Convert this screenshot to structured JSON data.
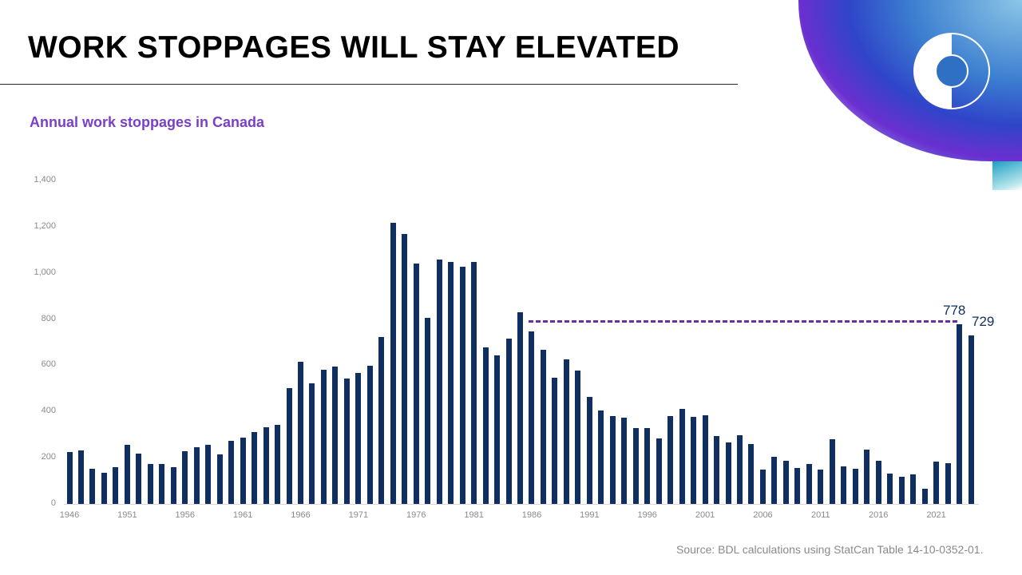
{
  "slide": {
    "title": "WORK STOPPAGES WILL STAY ELEVATED",
    "subtitle": "Annual work stoppages in Canada",
    "source": "Source: BDL calculations using StatCan Table 14-10-0352-01.",
    "logo": "bdc-ring-logo-icon",
    "colors": {
      "bar": "#0e2f5f",
      "accent": "#7a3fc8",
      "dash": "#6b2fa0"
    }
  },
  "chart_data": {
    "type": "bar",
    "title": "Annual work stoppages in Canada",
    "xlabel": "",
    "ylabel": "",
    "ylim": [
      0,
      1400
    ],
    "yticks": [
      "0",
      "200",
      "400",
      "600",
      "800",
      "1,000",
      "1,200",
      "1,400"
    ],
    "xtick_labels": [
      "1946",
      "1951",
      "1956",
      "1961",
      "1966",
      "1971",
      "1976",
      "1981",
      "1986",
      "1991",
      "1996",
      "2001",
      "2006",
      "2011",
      "2016",
      "2021"
    ],
    "grid": false,
    "legend": "none",
    "categories": [
      "1946",
      "1947",
      "1948",
      "1949",
      "1950",
      "1951",
      "1952",
      "1953",
      "1954",
      "1955",
      "1956",
      "1957",
      "1958",
      "1959",
      "1960",
      "1961",
      "1962",
      "1963",
      "1964",
      "1965",
      "1966",
      "1967",
      "1968",
      "1969",
      "1970",
      "1971",
      "1972",
      "1973",
      "1974",
      "1975",
      "1976",
      "1977",
      "1978",
      "1979",
      "1980",
      "1981",
      "1982",
      "1983",
      "1984",
      "1985",
      "1986",
      "1987",
      "1988",
      "1989",
      "1990",
      "1991",
      "1992",
      "1993",
      "1994",
      "1995",
      "1996",
      "1997",
      "1998",
      "1999",
      "2000",
      "2001",
      "2002",
      "2003",
      "2004",
      "2005",
      "2006",
      "2007",
      "2008",
      "2009",
      "2010",
      "2011",
      "2012",
      "2013",
      "2014",
      "2015",
      "2016",
      "2017",
      "2018",
      "2019",
      "2020",
      "2021",
      "2022",
      "2023",
      "2024"
    ],
    "values": [
      225,
      232,
      152,
      135,
      159,
      256,
      218,
      173,
      173,
      159,
      228,
      245,
      256,
      214,
      273,
      287,
      311,
      332,
      342,
      501,
      615,
      522,
      581,
      595,
      543,
      567,
      598,
      722,
      1218,
      1168,
      1040,
      806,
      1058,
      1047,
      1027,
      1048,
      677,
      643,
      716,
      830,
      747,
      667,
      546,
      626,
      577,
      463,
      404,
      380,
      373,
      328,
      328,
      283,
      380,
      411,
      377,
      384,
      294,
      266,
      297,
      259,
      149,
      204,
      187,
      156,
      173,
      149,
      280,
      162,
      152,
      235,
      187,
      131,
      118,
      128,
      66,
      183,
      176,
      778,
      729
    ],
    "annotations": [
      {
        "text": "778",
        "year": "2023"
      },
      {
        "text": "729",
        "year": "2024"
      },
      {
        "type": "dashed-reference-line",
        "from_year": "1986",
        "to_year": "2023",
        "value": 790
      }
    ]
  }
}
